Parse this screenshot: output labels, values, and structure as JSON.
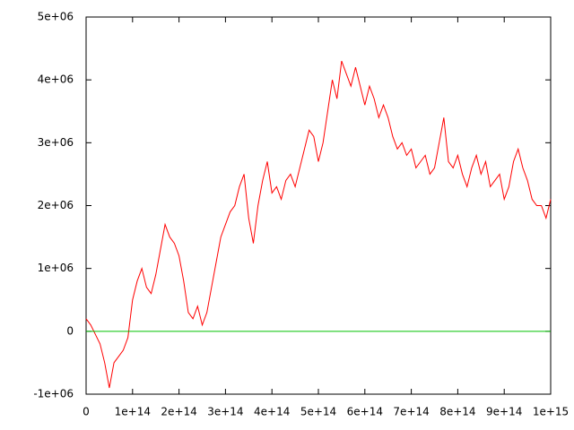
{
  "chart_data": {
    "type": "line",
    "xlim": [
      0,
      1000000000000000.0
    ],
    "xticks": [
      0,
      {
        "value": 100000000000000.0,
        "label": "1e+14"
      },
      {
        "value": 200000000000000.0,
        "label": "2e+14"
      },
      {
        "value": 300000000000000.0,
        "label": "3e+14"
      },
      {
        "value": 400000000000000.0,
        "label": "4e+14"
      },
      {
        "value": 500000000000000.0,
        "label": "5e+14"
      },
      {
        "value": 600000000000000.0,
        "label": "6e+14"
      },
      {
        "value": 700000000000000.0,
        "label": "7e+14"
      },
      {
        "value": 800000000000000.0,
        "label": "8e+14"
      },
      {
        "value": 900000000000000.0,
        "label": "9e+14"
      },
      {
        "value": 1000000000000000.0,
        "label": "1e+15"
      }
    ],
    "ylim": [
      -1000000,
      5000000
    ],
    "yticks": [
      {
        "value": -1000000,
        "label": "-1e+06"
      },
      0,
      {
        "value": 1000000,
        "label": "1e+06"
      },
      {
        "value": 2000000,
        "label": "2e+06"
      },
      {
        "value": 3000000,
        "label": "3e+06"
      },
      {
        "value": 4000000,
        "label": "4e+06"
      },
      {
        "value": 5000000,
        "label": "5e+06"
      }
    ],
    "series": [
      {
        "color": "#ff0000",
        "x": [
          0,
          10000000000000.0,
          20000000000000.0,
          30000000000000.0,
          40000000000000.0,
          50000000000000.0,
          60000000000000.0,
          70000000000000.0,
          80000000000000.0,
          90000000000000.0,
          100000000000000.0,
          110000000000000.0,
          120000000000000.0,
          130000000000000.0,
          140000000000000.0,
          150000000000000.0,
          160000000000000.0,
          170000000000000.0,
          180000000000000.0,
          190000000000000.0,
          200000000000000.0,
          210000000000000.0,
          220000000000000.0,
          230000000000000.0,
          240000000000000.0,
          250000000000000.0,
          260000000000000.0,
          270000000000000.0,
          280000000000000.0,
          290000000000000.0,
          300000000000000.0,
          310000000000000.0,
          320000000000000.0,
          330000000000000.0,
          340000000000000.0,
          350000000000000.0,
          360000000000000.0,
          370000000000000.0,
          380000000000000.0,
          390000000000000.0,
          400000000000000.0,
          410000000000000.0,
          420000000000000.0,
          430000000000000.0,
          440000000000000.0,
          450000000000000.0,
          460000000000000.0,
          470000000000000.0,
          480000000000000.0,
          490000000000000.0,
          500000000000000.0,
          510000000000000.0,
          520000000000000.0,
          530000000000000.0,
          540000000000000.0,
          550000000000000.0,
          560000000000000.0,
          570000000000000.0,
          580000000000000.0,
          590000000000000.0,
          600000000000000.0,
          610000000000000.0,
          620000000000000.0,
          630000000000000.0,
          640000000000000.0,
          650000000000000.0,
          660000000000000.0,
          670000000000000.0,
          680000000000000.0,
          690000000000000.0,
          700000000000000.0,
          710000000000000.0,
          720000000000000.0,
          730000000000000.0,
          740000000000000.0,
          750000000000000.0,
          760000000000000.0,
          770000000000000.0,
          780000000000000.0,
          790000000000000.0,
          800000000000000.0,
          810000000000000.0,
          820000000000000.0,
          830000000000000.0,
          840000000000000.0,
          850000000000000.0,
          860000000000000.0,
          870000000000000.0,
          880000000000000.0,
          890000000000000.0,
          900000000000000.0,
          910000000000000.0,
          920000000000000.0,
          930000000000000.0,
          940000000000000.0,
          950000000000000.0,
          960000000000000.0,
          970000000000000.0,
          980000000000000.0,
          990000000000000.0,
          1000000000000000.0
        ],
        "values": [
          200000,
          100000,
          -50000,
          -200000,
          -500000,
          -900000,
          -500000,
          -400000,
          -300000,
          -100000,
          500000,
          800000,
          1000000,
          700000,
          600000,
          900000,
          1300000,
          1700000,
          1500000,
          1400000,
          1200000,
          800000,
          300000,
          200000,
          400000,
          100000,
          300000,
          700000,
          1100000,
          1500000,
          1700000,
          1900000,
          2000000,
          2300000,
          2500000,
          1800000,
          1400000,
          2000000,
          2400000,
          2700000,
          2200000,
          2300000,
          2100000,
          2400000,
          2500000,
          2300000,
          2600000,
          2900000,
          3200000,
          3100000,
          2700000,
          3000000,
          3500000,
          4000000,
          3700000,
          4300000,
          4100000,
          3900000,
          4200000,
          3900000,
          3600000,
          3900000,
          3700000,
          3400000,
          3600000,
          3400000,
          3100000,
          2900000,
          3000000,
          2800000,
          2900000,
          2600000,
          2700000,
          2800000,
          2500000,
          2600000,
          3000000,
          3400000,
          2700000,
          2600000,
          2800000,
          2500000,
          2300000,
          2600000,
          2800000,
          2500000,
          2700000,
          2300000,
          2400000,
          2500000,
          2100000,
          2300000,
          2700000,
          2900000,
          2600000,
          2400000,
          2100000,
          2000000,
          2000000,
          1800000,
          2100000
        ]
      },
      {
        "color": "#00c000",
        "x": [
          0,
          1000000000000000.0
        ],
        "values": [
          0,
          0
        ]
      }
    ]
  }
}
